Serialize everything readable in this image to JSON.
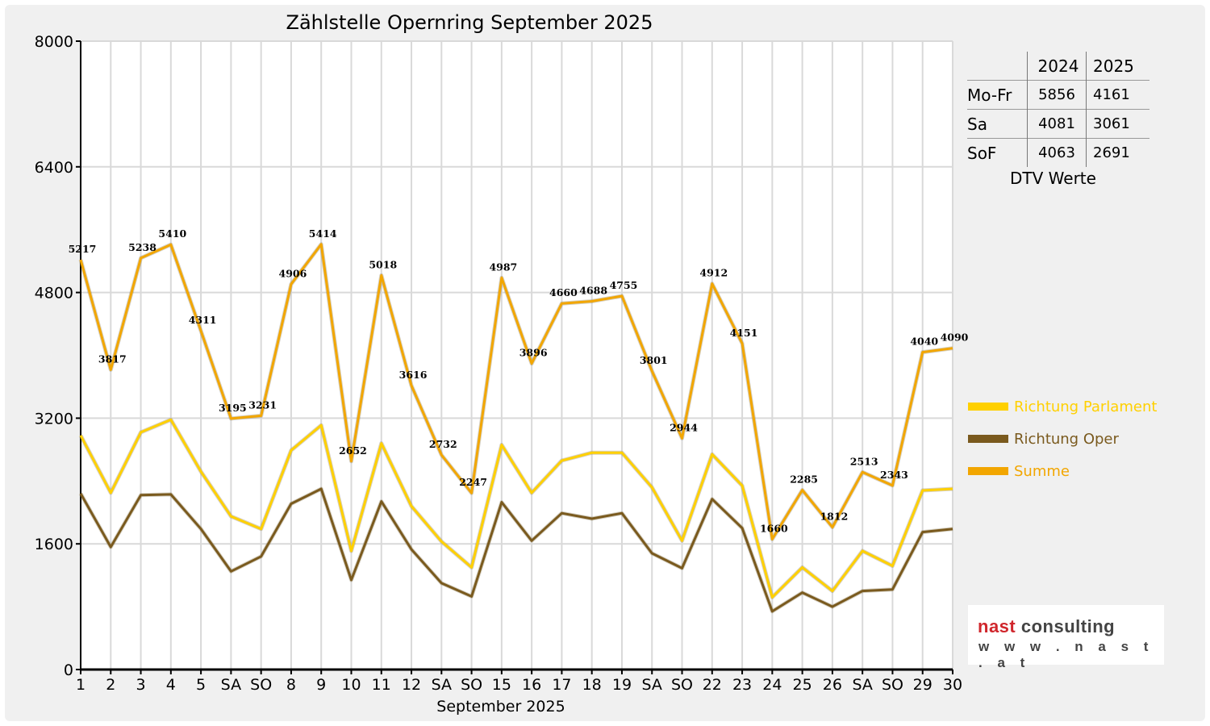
{
  "chart_data": {
    "type": "line",
    "title": "Zählstelle Opernring September 2025",
    "xlabel": "September 2025",
    "ylabel": "",
    "ylim": [
      0,
      8000
    ],
    "yticks": [
      0,
      1600,
      3200,
      4800,
      6400,
      8000
    ],
    "grid": true,
    "legend_position": "right",
    "categories": [
      "1",
      "2",
      "3",
      "4",
      "5",
      "SA",
      "SO",
      "8",
      "9",
      "10",
      "11",
      "12",
      "SA",
      "SO",
      "15",
      "16",
      "17",
      "18",
      "19",
      "SA",
      "SO",
      "22",
      "23",
      "24",
      "25",
      "26",
      "SA",
      "SO",
      "29",
      "30"
    ],
    "weekend_categories": [
      "SA",
      "SO"
    ],
    "red_categories": [
      "SO"
    ],
    "series": [
      {
        "name": "Richtung Parlament",
        "color": "#ffd000",
        "values": [
          2980,
          2250,
          3020,
          3180,
          2520,
          1950,
          1790,
          2790,
          3110,
          1510,
          2880,
          2080,
          1630,
          1300,
          2860,
          2250,
          2660,
          2760,
          2760,
          2320,
          1640,
          2740,
          2340,
          920,
          1300,
          1000,
          1510,
          1320,
          2280,
          2300
        ]
      },
      {
        "name": "Richtung Oper",
        "color": "#7a5a1e",
        "values": [
          2240,
          1560,
          2220,
          2230,
          1790,
          1250,
          1440,
          2110,
          2300,
          1140,
          2140,
          1530,
          1100,
          930,
          2130,
          1640,
          1990,
          1920,
          1990,
          1480,
          1290,
          2170,
          1800,
          740,
          980,
          800,
          1000,
          1020,
          1750,
          1790
        ]
      },
      {
        "name": "Summe",
        "color": "#f2a600",
        "values": [
          5217,
          3817,
          5238,
          5410,
          4311,
          3195,
          3231,
          4906,
          5414,
          2652,
          5018,
          3616,
          2732,
          2247,
          4987,
          3896,
          4660,
          4688,
          4755,
          3801,
          2944,
          4912,
          4151,
          1660,
          2285,
          1812,
          2513,
          2343,
          4040,
          4090
        ],
        "labels": [
          "5217",
          "3817",
          "5238",
          "5410",
          "4311",
          "3195",
          "3231",
          "4906",
          "5414",
          "2652",
          "5018",
          "3616",
          "2732",
          "2247",
          "4987",
          "3896",
          "4660",
          "4688",
          "4755",
          "3801",
          "2944",
          "4912",
          "4151",
          "1660",
          "2285",
          "1812",
          "2513",
          "2343",
          "4040",
          "4090"
        ]
      }
    ]
  },
  "dtv_table": {
    "header": [
      "",
      "2024",
      "2025"
    ],
    "rows": [
      {
        "label": "Mo-Fr",
        "v2024": "5856",
        "v2025": "4161"
      },
      {
        "label": "Sa",
        "v2024": "4081",
        "v2025": "3061"
      },
      {
        "label": "SoF",
        "v2024": "4063",
        "v2025": "2691"
      }
    ],
    "caption": "DTV Werte"
  },
  "logo": {
    "brand": "nast",
    "word": "consulting",
    "url": "w w w . n a s t . a t",
    "brand_color": "#d0262c"
  }
}
